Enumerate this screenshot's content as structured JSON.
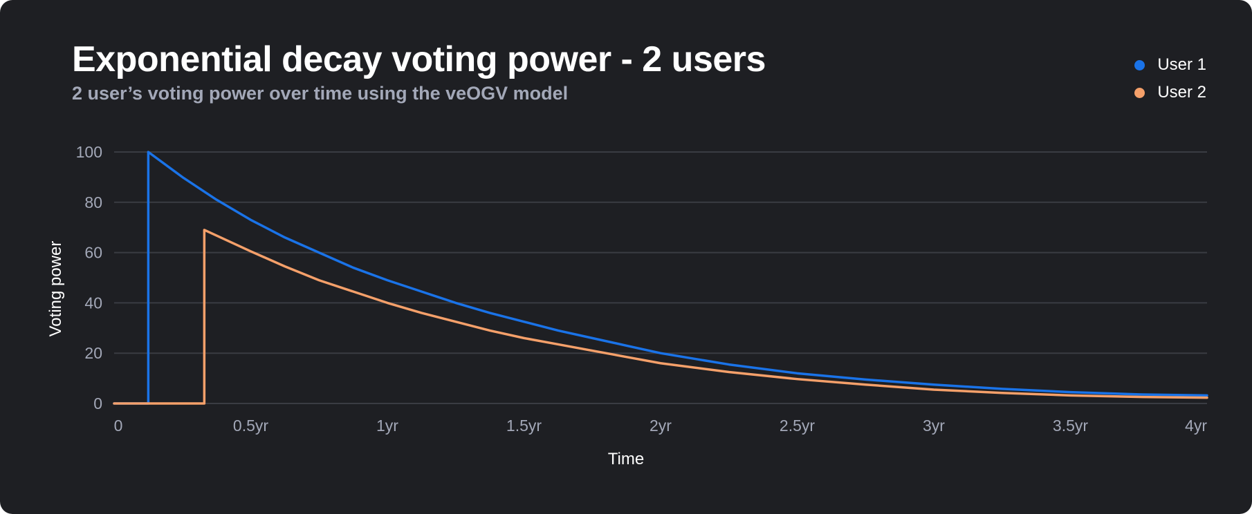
{
  "chart_data": {
    "type": "line",
    "title": "Exponential decay voting power - 2 users",
    "subtitle": "2 user’s voting power over time using the veOGV model",
    "xlabel": "Time",
    "ylabel": "Voting power",
    "xlim": [
      0,
      4
    ],
    "ylim": [
      0,
      100
    ],
    "x_ticks": [
      {
        "value": 0,
        "label": "0"
      },
      {
        "value": 0.5,
        "label": "0.5yr"
      },
      {
        "value": 1,
        "label": "1yr"
      },
      {
        "value": 1.5,
        "label": "1.5yr"
      },
      {
        "value": 2,
        "label": "2yr"
      },
      {
        "value": 2.5,
        "label": "2.5yr"
      },
      {
        "value": 3,
        "label": "3yr"
      },
      {
        "value": 3.5,
        "label": "3.5yr"
      },
      {
        "value": 4,
        "label": "4yr"
      }
    ],
    "y_ticks": [
      {
        "value": 0,
        "label": "0"
      },
      {
        "value": 20,
        "label": "20"
      },
      {
        "value": 40,
        "label": "40"
      },
      {
        "value": 60,
        "label": "60"
      },
      {
        "value": 80,
        "label": "80"
      },
      {
        "value": 100,
        "label": "100"
      }
    ],
    "grid": true,
    "legend_position": "top-right",
    "series": [
      {
        "name": "User 1",
        "color": "#1a73e8",
        "points": [
          [
            0,
            0
          ],
          [
            0.125,
            0
          ],
          [
            0.125,
            100
          ],
          [
            0.25,
            90
          ],
          [
            0.375,
            81
          ],
          [
            0.5,
            73
          ],
          [
            0.625,
            66
          ],
          [
            0.75,
            60
          ],
          [
            0.875,
            54
          ],
          [
            1,
            49
          ],
          [
            1.125,
            44.5
          ],
          [
            1.25,
            40
          ],
          [
            1.375,
            36
          ],
          [
            1.5,
            32.5
          ],
          [
            1.625,
            29
          ],
          [
            1.75,
            26
          ],
          [
            1.875,
            23
          ],
          [
            2,
            20
          ],
          [
            2.25,
            15.5
          ],
          [
            2.5,
            12
          ],
          [
            2.75,
            9.5
          ],
          [
            3,
            7.5
          ],
          [
            3.25,
            5.8
          ],
          [
            3.5,
            4.5
          ],
          [
            3.75,
            3.6
          ],
          [
            4,
            3.2
          ]
        ]
      },
      {
        "name": "User 2",
        "color": "#f5a06a",
        "points": [
          [
            0,
            0
          ],
          [
            0.33,
            0
          ],
          [
            0.33,
            69
          ],
          [
            0.5,
            60.5
          ],
          [
            0.625,
            54.5
          ],
          [
            0.75,
            49
          ],
          [
            0.875,
            44.5
          ],
          [
            1,
            40
          ],
          [
            1.125,
            36
          ],
          [
            1.25,
            32.5
          ],
          [
            1.375,
            29
          ],
          [
            1.5,
            26
          ],
          [
            1.625,
            23.5
          ],
          [
            1.75,
            21
          ],
          [
            1.875,
            18.5
          ],
          [
            2,
            16
          ],
          [
            2.25,
            12.5
          ],
          [
            2.5,
            9.7
          ],
          [
            2.75,
            7.5
          ],
          [
            3,
            5.5
          ],
          [
            3.25,
            4.2
          ],
          [
            3.5,
            3.2
          ],
          [
            3.75,
            2.6
          ],
          [
            4,
            2.3
          ]
        ]
      }
    ]
  },
  "colors": {
    "background": "#1e1f23",
    "grid": "#3a3c43",
    "tick_text": "#a3a8b8",
    "title_text": "#ffffff"
  }
}
